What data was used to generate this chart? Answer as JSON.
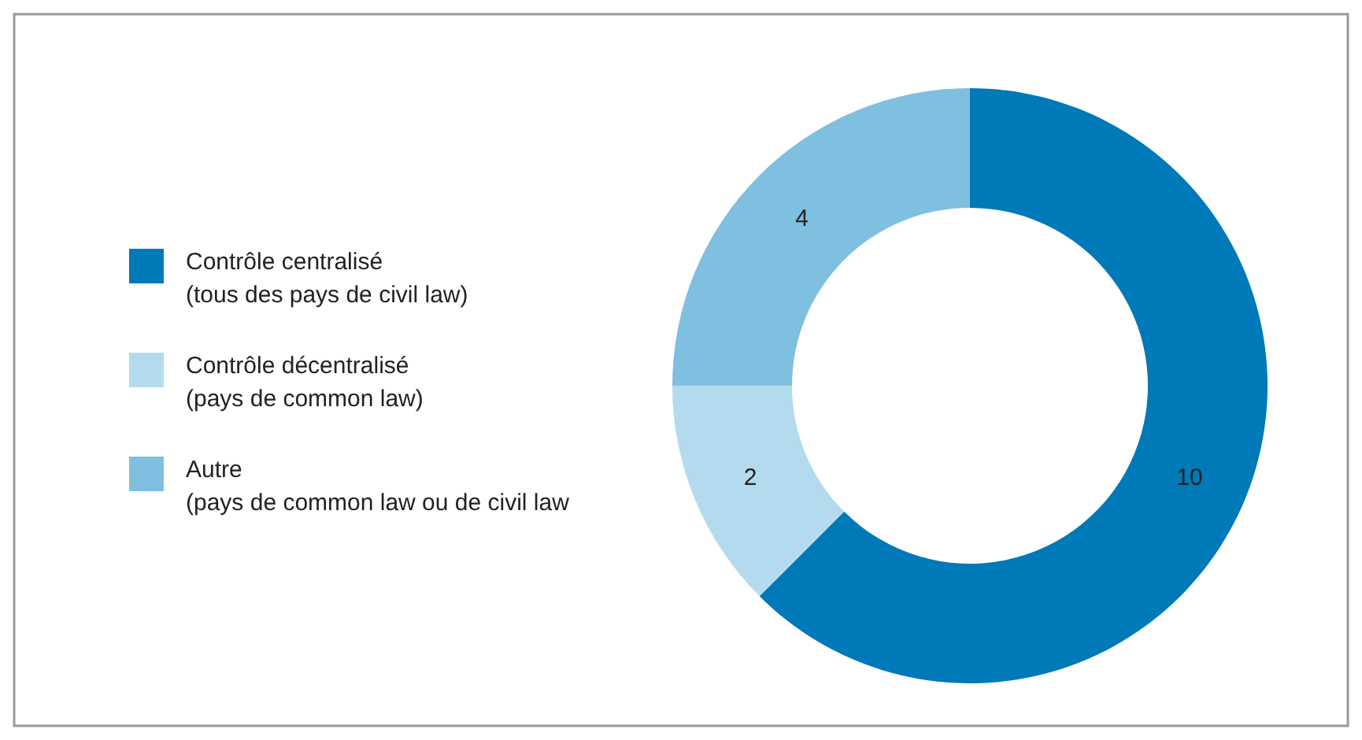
{
  "chart_data": {
    "type": "donut",
    "categories": [
      "Contrôle centralisé\n(tous des pays de civil law)",
      "Contrôle décentralisé\n(pays de common law)",
      "Autre\n(pays de common law ou de civil law"
    ],
    "values": [
      10,
      2,
      4
    ],
    "colors": [
      "#0079b8",
      "#b3dbed",
      "#7fbfdf"
    ],
    "data_labels": true,
    "legend": "left"
  }
}
